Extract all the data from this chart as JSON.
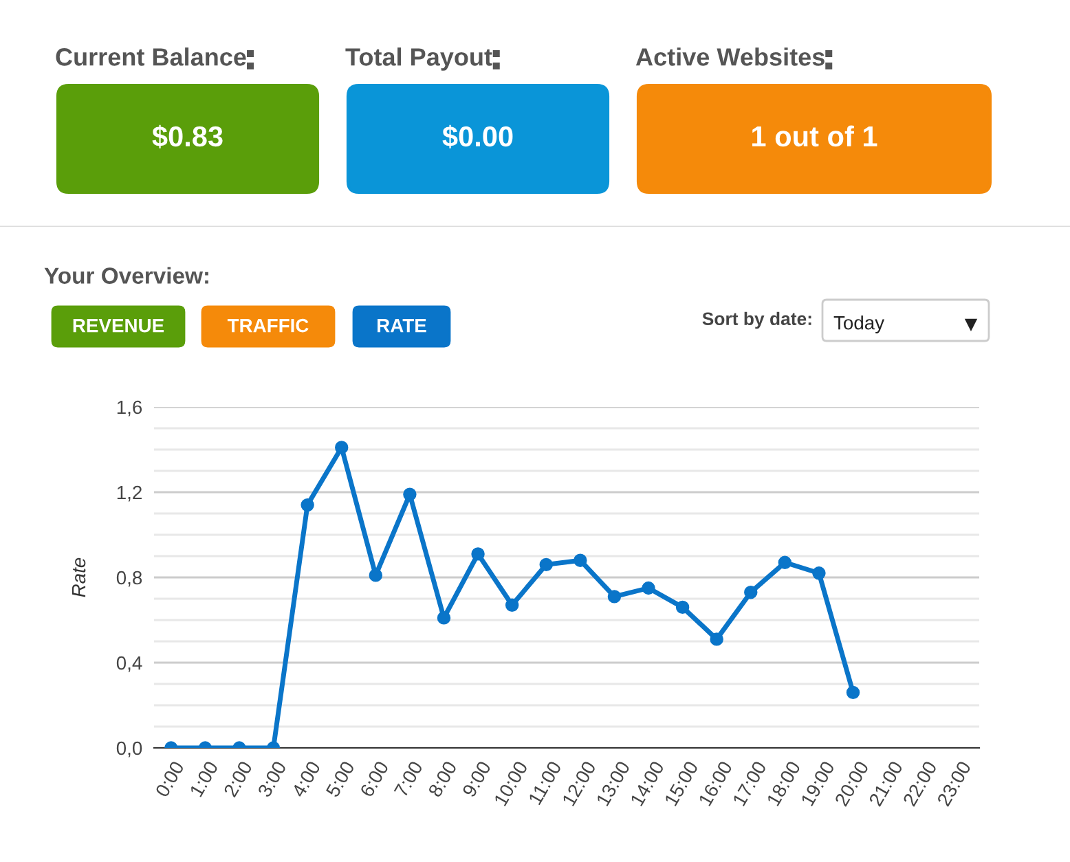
{
  "chart_data": [
    {
      "type": "other",
      "categories": [
        "Current Balance",
        "Total Payout",
        "Active Websites"
      ],
      "value_labels": [
        "$0.83",
        "$0.00",
        "1 out of 1"
      ],
      "colors": [
        "#5a9e0a",
        "#0a95d8",
        "#f58a0a"
      ]
    },
    {
      "type": "line",
      "title": "Your Overview:",
      "ylabel": "Rate",
      "annotations": [
        "REVENUE",
        "TRAFFIC",
        "RATE",
        "Sort by date:",
        "Today"
      ],
      "categories": [
        "0:00",
        "1:00",
        "2:00",
        "3:00",
        "4:00",
        "5:00",
        "6:00",
        "7:00",
        "8:00",
        "9:00",
        "10:00",
        "11:00",
        "12:00",
        "13:00",
        "14:00",
        "15:00",
        "16:00",
        "17:00",
        "18:00",
        "19:00",
        "20:00",
        "21:00",
        "22:00",
        "23:00"
      ],
      "series": [
        {
          "color": "#0a75c9",
          "values": [
            0,
            0,
            0,
            0,
            1.14,
            1.41,
            0.81,
            1.19,
            0.61,
            0.91,
            0.67,
            0.86,
            0.88,
            0.71,
            0.75,
            0.66,
            0.51,
            0.73,
            0.87,
            0.82,
            0.26,
            null,
            null,
            null
          ]
        }
      ],
      "ylim": [
        0,
        1.6
      ],
      "yticks": [
        {
          "value": 0,
          "label": "0,0"
        },
        {
          "value": 0.1,
          "label": null
        },
        {
          "value": 0.2,
          "label": null
        },
        {
          "value": 0.3,
          "label": null
        },
        {
          "value": 0.4,
          "label": "0,4"
        },
        {
          "value": 0.5,
          "label": null
        },
        {
          "value": 0.6,
          "label": null
        },
        {
          "value": 0.7,
          "label": null
        },
        {
          "value": 0.8,
          "label": "0,8"
        },
        {
          "value": 0.9,
          "label": null
        },
        {
          "value": 1.0,
          "label": null
        },
        {
          "value": 1.1,
          "label": null
        },
        {
          "value": 1.2,
          "label": "1,2"
        },
        {
          "value": 1.3,
          "label": null
        },
        {
          "value": 1.4,
          "label": null
        },
        {
          "value": 1.5,
          "label": null
        },
        {
          "value": 1.6,
          "label": "1,6"
        }
      ],
      "grid": "y",
      "marker": "circle",
      "line_style": "solid"
    }
  ]
}
